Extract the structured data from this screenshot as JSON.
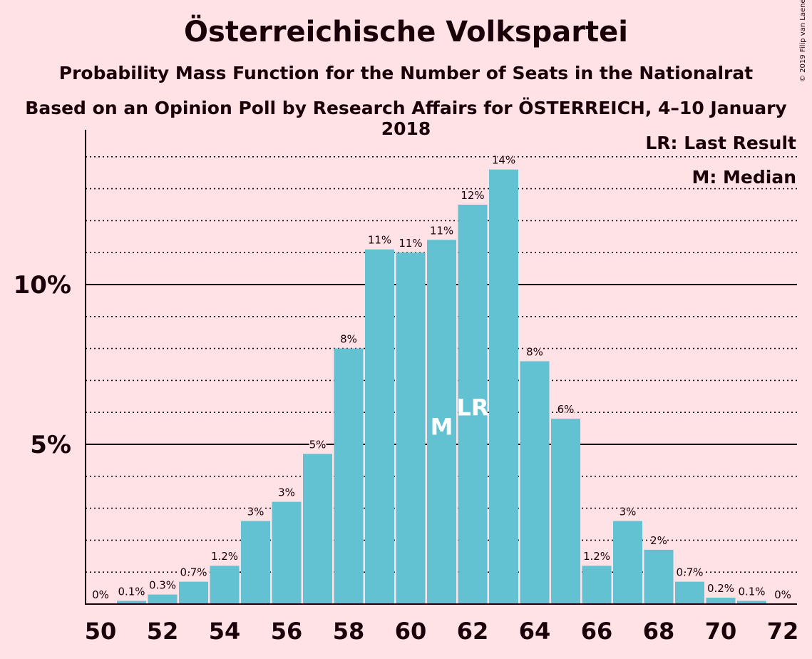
{
  "chart_data": {
    "type": "bar",
    "title": "Österreichische Volkspartei",
    "subtitle": "Probability Mass Function for the Number of Seats in the Nationalrat",
    "source": "Based on an Opinion Poll by Research Affairs for ÖSTERREICH, 4–10 January 2018",
    "copyright": "© 2019 Filip van Laenen",
    "x": [
      50,
      51,
      52,
      53,
      54,
      55,
      56,
      57,
      58,
      59,
      60,
      61,
      62,
      63,
      64,
      65,
      66,
      67,
      68,
      69,
      70,
      71,
      72
    ],
    "values": [
      0,
      0.1,
      0.3,
      0.7,
      1.2,
      2.6,
      3.2,
      4.7,
      8.0,
      11.1,
      11.0,
      11.4,
      12.5,
      13.6,
      7.6,
      5.8,
      1.2,
      2.6,
      1.7,
      0.7,
      0.2,
      0.1,
      0
    ],
    "labels": [
      "0%",
      "0.1%",
      "0.3%",
      "0.7%",
      "1.2%",
      "3%",
      "3%",
      "5%",
      "8%",
      "11%",
      "11%",
      "11%",
      "12%",
      "14%",
      "8%",
      "6%",
      "1.2%",
      "3%",
      "2%",
      "0.7%",
      "0.2%",
      "0.1%",
      "0%"
    ],
    "xtick_labels": [
      "50",
      "52",
      "54",
      "56",
      "58",
      "60",
      "62",
      "64",
      "66",
      "68",
      "70",
      "72"
    ],
    "ytick_labels": [
      {
        "value": 5,
        "label": "5%"
      },
      {
        "value": 10,
        "label": "10%"
      }
    ],
    "ylim": [
      0,
      14.8
    ],
    "median_seat": 61,
    "last_result_seat": 62,
    "median_marker": "M",
    "last_result_marker": "LR",
    "legend": [
      "LR: Last Result",
      "M: Median"
    ],
    "legend_position": "top-right",
    "bar_color": "#63c2d1",
    "background_color": "#ffe2e6"
  }
}
